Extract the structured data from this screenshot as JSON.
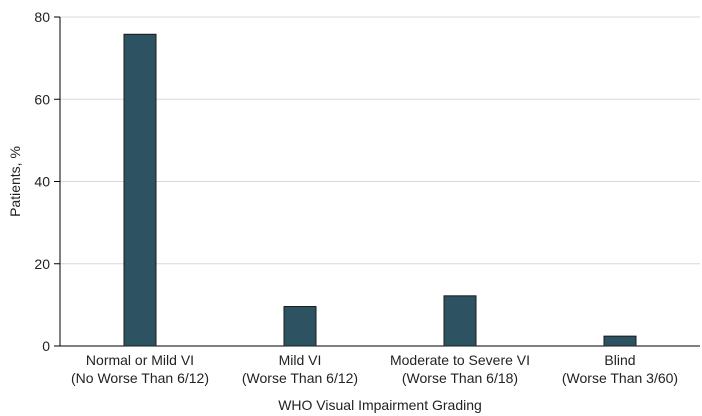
{
  "chart_data": {
    "type": "bar",
    "categories": [
      [
        "Normal or Mild VI",
        "(No Worse Than 6/12)"
      ],
      [
        "Mild VI",
        "(Worse Than 6/12)"
      ],
      [
        "Moderate to Severe VI",
        "(Worse Than 6/18)"
      ],
      [
        "Blind",
        "(Worse Than 3/60)"
      ]
    ],
    "values": [
      75.8,
      9.6,
      12.2,
      2.4
    ],
    "xlabel": "WHO Visual Impairment Grading",
    "ylabel": "Patients, %",
    "ylim": [
      0,
      80
    ],
    "yticks": [
      0,
      20,
      40,
      60,
      80
    ],
    "grid": true,
    "colors": {
      "bar": "#2d5362",
      "bar_edge": "#1a1a1a"
    }
  }
}
